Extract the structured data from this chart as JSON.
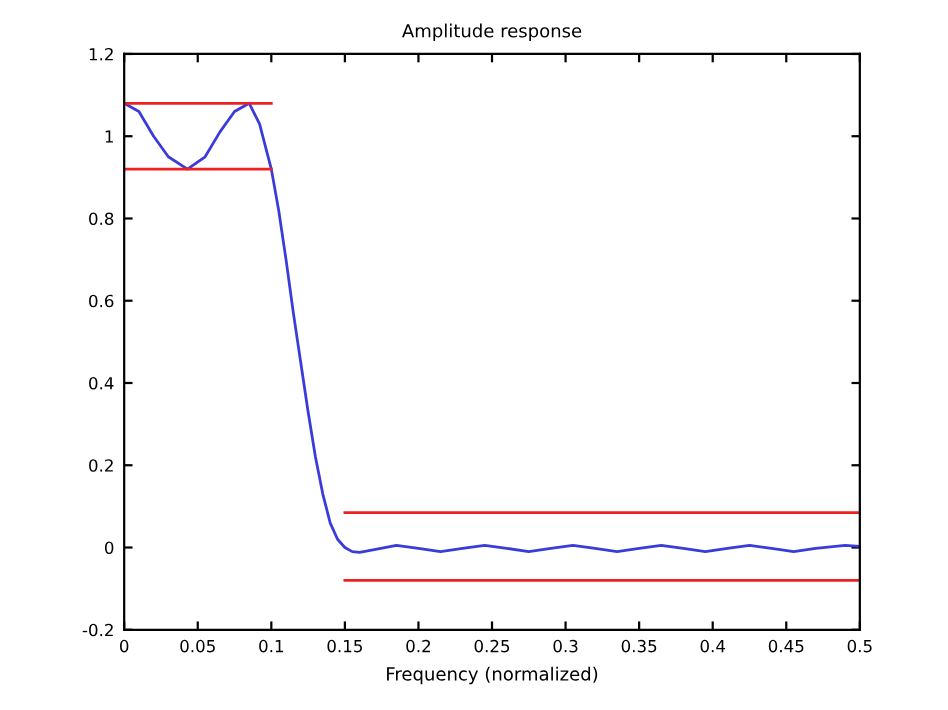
{
  "chart_data": {
    "type": "line",
    "title": "Amplitude response",
    "xlabel": "Frequency (normalized)",
    "xlim": [
      0,
      0.5
    ],
    "xticks": [
      0,
      0.05,
      0.1,
      0.15,
      0.2,
      0.25,
      0.3,
      0.35,
      0.4,
      0.45,
      0.5
    ],
    "ylim": [
      -0.2,
      1.2
    ],
    "yticks": [
      -0.2,
      0,
      0.2,
      0.4,
      0.6,
      0.8,
      1,
      1.2
    ],
    "grid": false,
    "marker": "none",
    "line_style": "solid",
    "series": [
      {
        "color": "#3b3bdc",
        "x": [
          0,
          0.01,
          0.02,
          0.03,
          0.043,
          0.055,
          0.065,
          0.075,
          0.085,
          0.092,
          0.1,
          0.105,
          0.11,
          0.115,
          0.12,
          0.125,
          0.13,
          0.135,
          0.14,
          0.145,
          0.15,
          0.155,
          0.16,
          0.17,
          0.185,
          0.2,
          0.215,
          0.23,
          0.245,
          0.26,
          0.275,
          0.29,
          0.305,
          0.32,
          0.335,
          0.35,
          0.365,
          0.38,
          0.395,
          0.41,
          0.425,
          0.44,
          0.455,
          0.47,
          0.49,
          0.5
        ],
        "values": [
          1.08,
          1.06,
          1.0,
          0.95,
          0.92,
          0.95,
          1.01,
          1.06,
          1.08,
          1.03,
          0.92,
          0.82,
          0.7,
          0.57,
          0.45,
          0.33,
          0.22,
          0.13,
          0.06,
          0.02,
          0.0,
          -0.01,
          -0.012,
          -0.005,
          0.005,
          -0.002,
          -0.01,
          -0.002,
          0.005,
          -0.002,
          -0.01,
          -0.002,
          0.005,
          -0.002,
          -0.01,
          -0.002,
          0.005,
          -0.002,
          -0.01,
          -0.002,
          0.005,
          -0.002,
          -0.01,
          -0.002,
          0.005,
          0.003
        ]
      },
      {
        "color": "#ee2222",
        "x": [
          0,
          0.1
        ],
        "values": [
          1.08,
          1.08
        ]
      },
      {
        "color": "#ee2222",
        "x": [
          0,
          0.1
        ],
        "values": [
          0.92,
          0.92
        ]
      },
      {
        "color": "#ee2222",
        "x": [
          0.15,
          0.5
        ],
        "values": [
          0.085,
          0.085
        ]
      },
      {
        "color": "#ee2222",
        "x": [
          0.15,
          0.5
        ],
        "values": [
          -0.08,
          -0.08
        ]
      }
    ]
  }
}
